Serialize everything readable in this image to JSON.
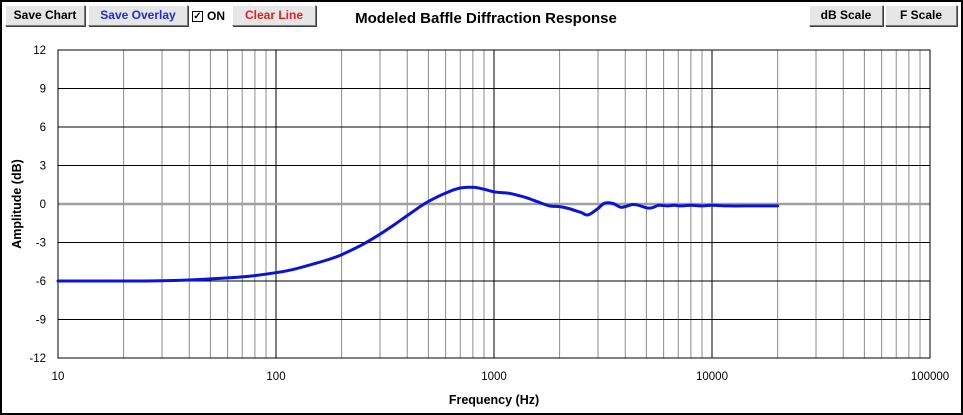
{
  "toolbar": {
    "save_chart_label": "Save Chart",
    "save_overlay_label": "Save Overlay",
    "toggle_label": "ON",
    "toggle_checked": true,
    "clear_line_label": "Clear Line",
    "db_scale_label": "dB Scale",
    "f_scale_label": "F Scale"
  },
  "colors": {
    "series": "#0a14d6",
    "zero_line": "#a0a0a0",
    "save_overlay_text": "#1b2fd0",
    "clear_line_text": "#e41f1f"
  },
  "chart_data": {
    "type": "line",
    "title": "Modeled Baffle Diffraction Response",
    "xlabel": "Frequency (Hz)",
    "ylabel": "Amplitude (dB)",
    "x_scale": "log",
    "xlim": [
      10,
      100000
    ],
    "ylim": [
      -12,
      12
    ],
    "x_ticks": [
      10,
      100,
      1000,
      10000,
      100000
    ],
    "x_tick_labels": [
      "10",
      "100",
      "1000",
      "10000",
      "100000"
    ],
    "y_ticks": [
      12,
      9,
      6,
      3,
      0,
      -3,
      -6,
      -9,
      -12
    ],
    "y_tick_labels": [
      "12",
      "9",
      "6",
      "3",
      "0",
      "-3",
      "-6",
      "-9",
      "-12"
    ],
    "grid": true,
    "series": [
      {
        "x": [
          10,
          20,
          30,
          40,
          50,
          60,
          70,
          80,
          100,
          120,
          150,
          180,
          200,
          250,
          300,
          350,
          400,
          450,
          500,
          600,
          700,
          800,
          900,
          1000,
          1100,
          1200,
          1400,
          1600,
          1800,
          2000,
          2200,
          2500,
          2700,
          3000,
          3200,
          3500,
          3800,
          4000,
          4300,
          4600,
          5000,
          5300,
          5700,
          6200,
          6700,
          7200,
          8000,
          9000,
          10000,
          12000,
          15000,
          18000,
          20000
        ],
        "y": [
          -6.0,
          -6.0,
          -5.98,
          -5.92,
          -5.84,
          -5.76,
          -5.68,
          -5.58,
          -5.35,
          -5.1,
          -4.65,
          -4.25,
          -3.95,
          -3.15,
          -2.35,
          -1.6,
          -0.9,
          -0.3,
          0.2,
          0.85,
          1.25,
          1.3,
          1.15,
          0.95,
          0.88,
          0.8,
          0.5,
          0.15,
          -0.15,
          -0.2,
          -0.35,
          -0.65,
          -0.85,
          -0.35,
          0.05,
          0.05,
          -0.25,
          -0.2,
          -0.05,
          -0.1,
          -0.3,
          -0.3,
          -0.1,
          -0.15,
          -0.1,
          -0.15,
          -0.1,
          -0.15,
          -0.1,
          -0.15,
          -0.15,
          -0.15,
          -0.15
        ]
      }
    ]
  }
}
